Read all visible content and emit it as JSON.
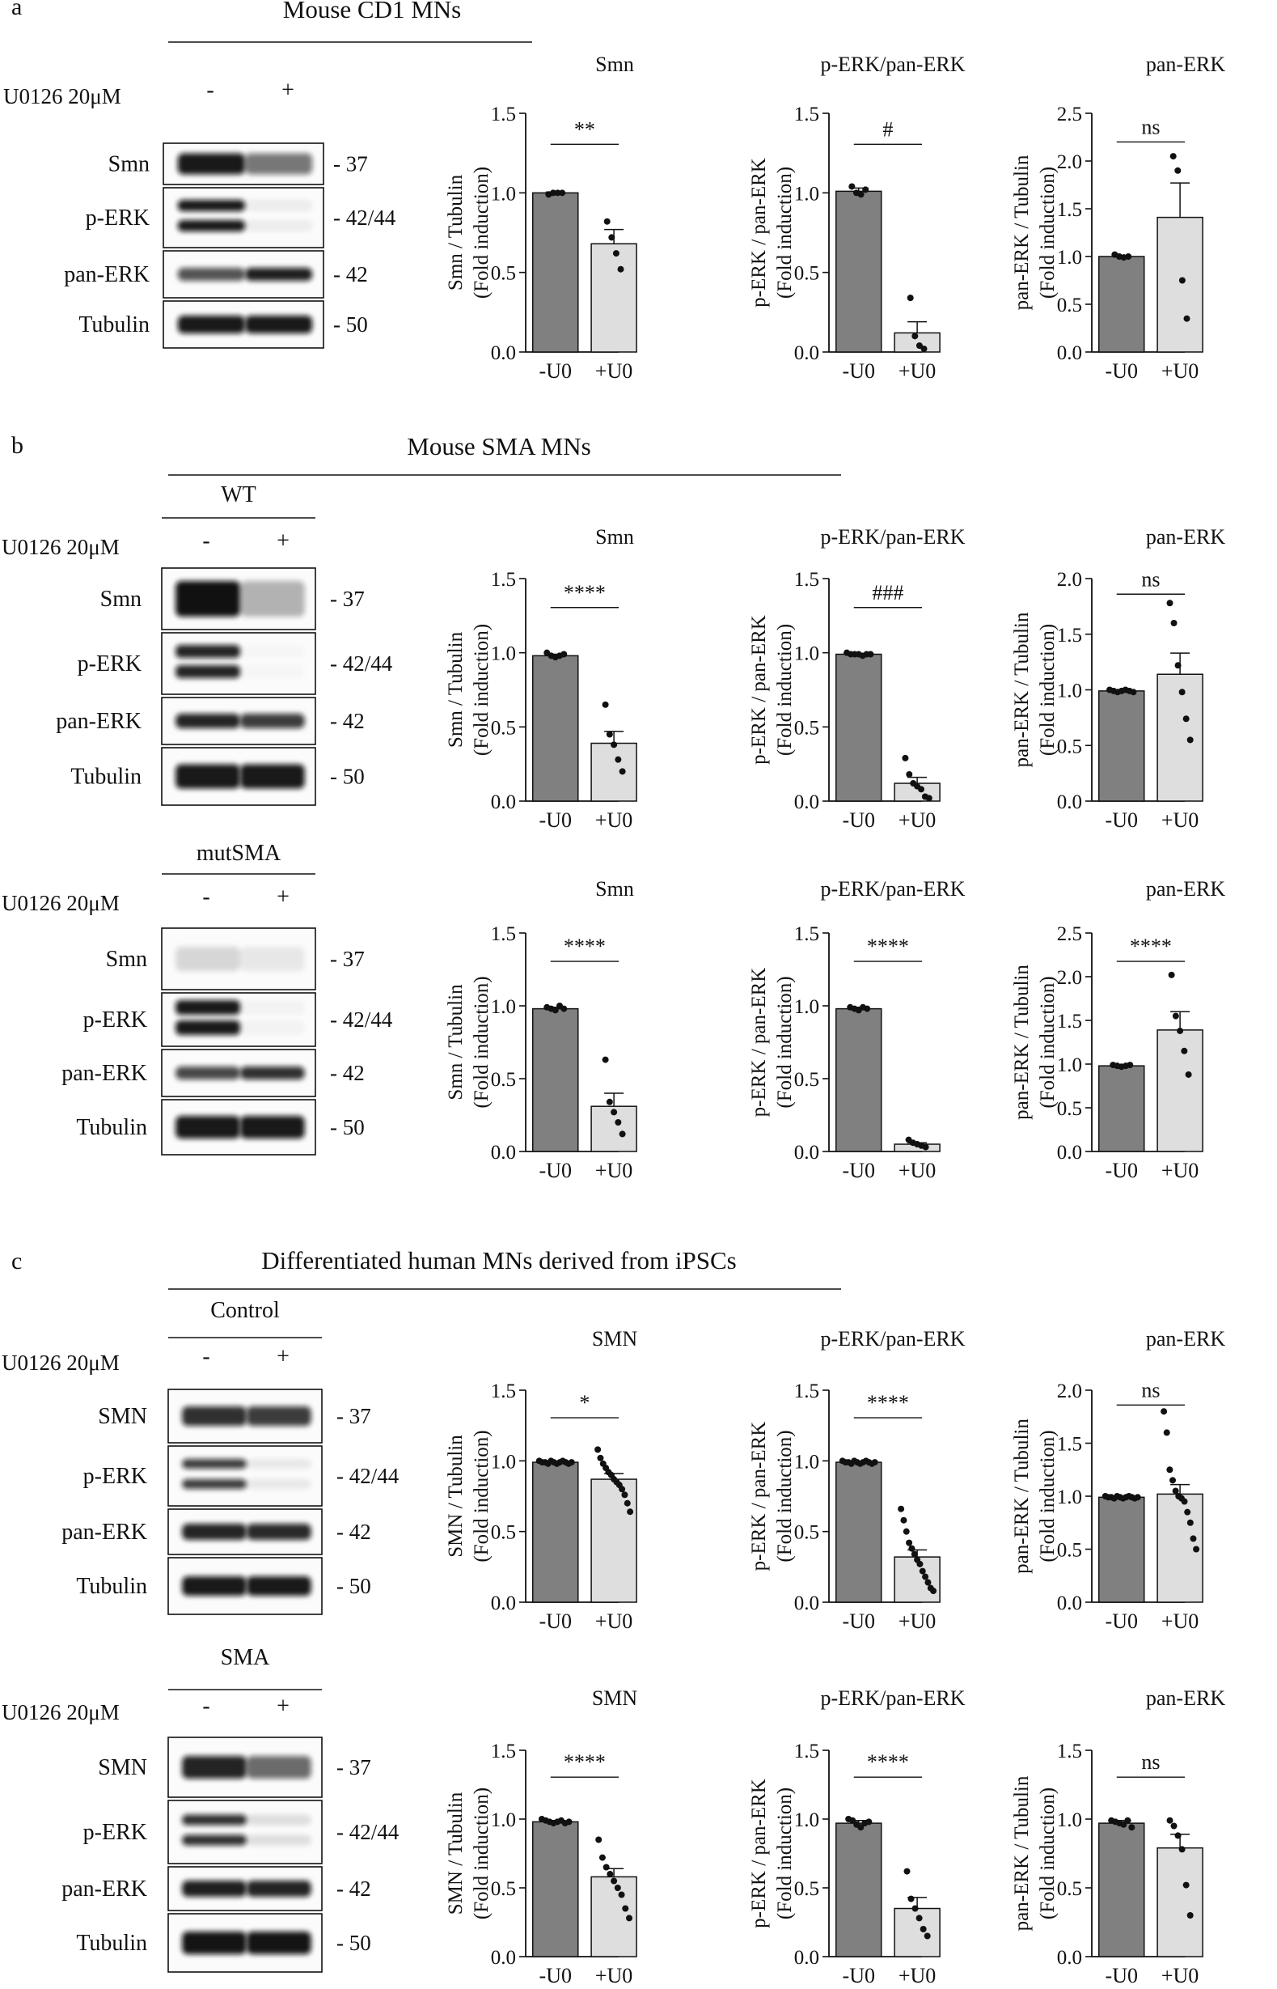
{
  "panels": [
    {
      "letter": "a",
      "header": "Mouse CD1 MNs",
      "blots": [
        {
          "group": "",
          "treatment": "U0126 20μM",
          "lanes": [
            "-",
            "+"
          ],
          "rows": [
            {
              "label": "Smn",
              "mw": "- 37"
            },
            {
              "label": "p-ERK",
              "mw": "- 42/44"
            },
            {
              "label": "pan-ERK",
              "mw": "- 42"
            },
            {
              "label": "Tubulin",
              "mw": "- 50"
            }
          ]
        }
      ]
    },
    {
      "letter": "b",
      "header": "Mouse SMA MNs",
      "blots": [
        {
          "group": "WT",
          "treatment": "U0126 20μM",
          "lanes": [
            "-",
            "+"
          ],
          "rows": [
            {
              "label": "Smn",
              "mw": "- 37"
            },
            {
              "label": "p-ERK",
              "mw": "- 42/44"
            },
            {
              "label": "pan-ERK",
              "mw": "- 42"
            },
            {
              "label": "Tubulin",
              "mw": "- 50"
            }
          ]
        },
        {
          "group": "mutSMA",
          "treatment": "U0126 20μM",
          "lanes": [
            "-",
            "+"
          ],
          "rows": [
            {
              "label": "Smn",
              "mw": "- 37"
            },
            {
              "label": "p-ERK",
              "mw": "- 42/44"
            },
            {
              "label": "pan-ERK",
              "mw": "- 42"
            },
            {
              "label": "Tubulin",
              "mw": "- 50"
            }
          ]
        }
      ]
    },
    {
      "letter": "c",
      "header": "Differentiated human MNs derived from iPSCs",
      "blots": [
        {
          "group": "Control",
          "treatment": "U0126 20μM",
          "lanes": [
            "-",
            "+"
          ],
          "rows": [
            {
              "label": "SMN",
              "mw": "- 37"
            },
            {
              "label": "p-ERK",
              "mw": "- 42/44"
            },
            {
              "label": "pan-ERK",
              "mw": "- 42"
            },
            {
              "label": "Tubulin",
              "mw": "- 50"
            }
          ]
        },
        {
          "group": "SMA",
          "treatment": "U0126 20μM",
          "lanes": [
            "-",
            "+"
          ],
          "rows": [
            {
              "label": "SMN",
              "mw": "- 37"
            },
            {
              "label": "p-ERK",
              "mw": "- 42/44"
            },
            {
              "label": "pan-ERK",
              "mw": "- 42"
            },
            {
              "label": "Tubulin",
              "mw": "- 50"
            }
          ]
        }
      ]
    }
  ],
  "colors": {
    "bar_control": "#808080",
    "bar_treated": "#dedede",
    "ink": "#111111"
  },
  "chart_data": [
    {
      "type": "bar",
      "title": "Smn",
      "ylabel": [
        "Smn / Tubulin",
        "(Fold induction)"
      ],
      "categories": [
        "-U0",
        "+U0"
      ],
      "values": [
        1.0,
        0.68
      ],
      "errors": [
        0.005,
        0.09
      ],
      "ylim": [
        0,
        1.5
      ],
      "yticks": [
        "0.0",
        "0.5",
        "1.0",
        "1.5"
      ],
      "significance": "**",
      "points": [
        [
          0.99,
          1.0,
          1.0,
          1.0
        ],
        [
          0.82,
          0.72,
          0.62,
          0.52
        ]
      ]
    },
    {
      "type": "bar",
      "title": "p-ERK/pan-ERK",
      "ylabel": [
        "p-ERK / pan-ERK",
        "(Fold induction)"
      ],
      "categories": [
        "-U0",
        "+U0"
      ],
      "values": [
        1.01,
        0.12
      ],
      "errors": [
        0.02,
        0.07
      ],
      "ylim": [
        0,
        1.5
      ],
      "yticks": [
        "0.0",
        "0.5",
        "1.0",
        "1.5"
      ],
      "significance": "#",
      "points": [
        [
          1.04,
          1.0,
          0.99,
          1.02
        ],
        [
          0.34,
          0.1,
          0.04,
          0.02
        ]
      ]
    },
    {
      "type": "bar",
      "title": "pan-ERK",
      "ylabel": [
        "pan-ERK / Tubulin",
        "(Fold induction)"
      ],
      "categories": [
        "-U0",
        "+U0"
      ],
      "values": [
        1.0,
        1.41
      ],
      "errors": [
        0.01,
        0.36
      ],
      "ylim": [
        0,
        2.5
      ],
      "yticks": [
        "0.0",
        "0.5",
        "1.0",
        "1.5",
        "2.0",
        "2.5"
      ],
      "significance": "ns",
      "points": [
        [
          1.02,
          1.0,
          0.99,
          1.0
        ],
        [
          2.05,
          1.9,
          0.75,
          0.35
        ]
      ]
    },
    {
      "type": "bar",
      "title": "Smn",
      "ylabel": [
        "Smn / Tubulin",
        "(Fold induction)"
      ],
      "categories": [
        "-U0",
        "+U0"
      ],
      "values": [
        0.98,
        0.39
      ],
      "errors": [
        0.01,
        0.08
      ],
      "ylim": [
        0,
        1.5
      ],
      "yticks": [
        "0.0",
        "0.5",
        "1.0",
        "1.5"
      ],
      "significance": "****",
      "points": [
        [
          1.0,
          0.98,
          0.97,
          0.98,
          0.99
        ],
        [
          0.65,
          0.45,
          0.38,
          0.28,
          0.2
        ]
      ]
    },
    {
      "type": "bar",
      "title": "p-ERK/pan-ERK",
      "ylabel": [
        "p-ERK / pan-ERK",
        "(Fold induction)"
      ],
      "categories": [
        "-U0",
        "+U0"
      ],
      "values": [
        0.99,
        0.12
      ],
      "errors": [
        0.005,
        0.04
      ],
      "ylim": [
        0,
        1.5
      ],
      "yticks": [
        "0.0",
        "0.5",
        "1.0",
        "1.5"
      ],
      "significance": "###",
      "points": [
        [
          1.0,
          0.99,
          0.99,
          0.99,
          0.98,
          0.99,
          0.99
        ],
        [
          0.29,
          0.18,
          0.12,
          0.1,
          0.08,
          0.03,
          0.02
        ]
      ]
    },
    {
      "type": "bar",
      "title": "pan-ERK",
      "ylabel": [
        "pan-ERK / Tubulin",
        "(Fold induction)"
      ],
      "categories": [
        "-U0",
        "+U0"
      ],
      "values": [
        0.99,
        1.14
      ],
      "errors": [
        0.01,
        0.19
      ],
      "ylim": [
        0,
        2.0
      ],
      "yticks": [
        "0.0",
        "0.5",
        "1.0",
        "1.5",
        "2.0"
      ],
      "significance": "ns",
      "points": [
        [
          1.0,
          0.99,
          0.98,
          0.99,
          1.0,
          0.99,
          0.98
        ],
        [
          1.78,
          1.6,
          1.22,
          0.98,
          0.74,
          0.55
        ]
      ]
    },
    {
      "type": "bar",
      "title": "Smn",
      "ylabel": [
        "Smn / Tubulin",
        "(Fold induction)"
      ],
      "categories": [
        "-U0",
        "+U0"
      ],
      "values": [
        0.98,
        0.31
      ],
      "errors": [
        0.01,
        0.09
      ],
      "ylim": [
        0,
        1.5
      ],
      "yticks": [
        "0.0",
        "0.5",
        "1.0",
        "1.5"
      ],
      "significance": "****",
      "points": [
        [
          0.99,
          0.98,
          0.97,
          1.0,
          0.98
        ],
        [
          0.63,
          0.34,
          0.27,
          0.2,
          0.12
        ]
      ]
    },
    {
      "type": "bar",
      "title": "p-ERK/pan-ERK",
      "ylabel": [
        "p-ERK / pan-ERK",
        "(Fold induction)"
      ],
      "categories": [
        "-U0",
        "+U0"
      ],
      "values": [
        0.98,
        0.05
      ],
      "errors": [
        0.01,
        0.01
      ],
      "ylim": [
        0,
        1.5
      ],
      "yticks": [
        "0.0",
        "0.5",
        "1.0",
        "1.5"
      ],
      "significance": "****",
      "points": [
        [
          0.99,
          0.98,
          0.97,
          0.99,
          0.98
        ],
        [
          0.08,
          0.06,
          0.05,
          0.04,
          0.03
        ]
      ]
    },
    {
      "type": "bar",
      "title": "pan-ERK",
      "ylabel": [
        "pan-ERK / Tubulin",
        "(Fold induction)"
      ],
      "categories": [
        "-U0",
        "+U0"
      ],
      "values": [
        0.98,
        1.39
      ],
      "errors": [
        0.01,
        0.21
      ],
      "ylim": [
        0,
        2.5
      ],
      "yticks": [
        "0.0",
        "0.5",
        "1.0",
        "1.5",
        "2.0",
        "2.5"
      ],
      "significance": "****",
      "points": [
        [
          0.99,
          0.98,
          0.97,
          0.98,
          0.99
        ],
        [
          2.02,
          1.55,
          1.38,
          1.15,
          0.88
        ]
      ]
    },
    {
      "type": "bar",
      "title": "SMN",
      "ylabel": [
        "SMN / Tubulin",
        "(Fold induction)"
      ],
      "categories": [
        "-U0",
        "+U0"
      ],
      "values": [
        0.99,
        0.87
      ],
      "errors": [
        0.005,
        0.04
      ],
      "ylim": [
        0,
        1.5
      ],
      "yticks": [
        "0.0",
        "0.5",
        "1.0",
        "1.5"
      ],
      "significance": "*",
      "points": [
        [
          1.0,
          0.99,
          0.99,
          0.98,
          1.0,
          0.99,
          0.98,
          0.99,
          1.0,
          0.99,
          0.98,
          0.99
        ],
        [
          1.08,
          1.02,
          0.98,
          0.95,
          0.92,
          0.9,
          0.87,
          0.85,
          0.83,
          0.8,
          0.76,
          0.7,
          0.64
        ]
      ]
    },
    {
      "type": "bar",
      "title": "p-ERK/pan-ERK",
      "ylabel": [
        "p-ERK / pan-ERK",
        "(Fold induction)"
      ],
      "categories": [
        "-U0",
        "+U0"
      ],
      "values": [
        0.99,
        0.32
      ],
      "errors": [
        0.005,
        0.05
      ],
      "ylim": [
        0,
        1.5
      ],
      "yticks": [
        "0.0",
        "0.5",
        "1.0",
        "1.5"
      ],
      "significance": "****",
      "points": [
        [
          1.0,
          0.99,
          0.99,
          0.98,
          1.0,
          0.99,
          0.98,
          0.99,
          1.0,
          0.99,
          0.98,
          0.99
        ],
        [
          0.66,
          0.58,
          0.5,
          0.42,
          0.38,
          0.34,
          0.3,
          0.27,
          0.22,
          0.18,
          0.14,
          0.1,
          0.08
        ]
      ]
    },
    {
      "type": "bar",
      "title": "pan-ERK",
      "ylabel": [
        "pan-ERK / Tubulin",
        "(Fold induction)"
      ],
      "categories": [
        "-U0",
        "+U0"
      ],
      "values": [
        0.99,
        1.02
      ],
      "errors": [
        0.005,
        0.09
      ],
      "ylim": [
        0,
        2.0
      ],
      "yticks": [
        "0.0",
        "0.5",
        "1.0",
        "1.5",
        "2.0"
      ],
      "significance": "ns",
      "points": [
        [
          1.0,
          0.99,
          0.99,
          0.98,
          1.0,
          0.99,
          0.98,
          0.99,
          1.0,
          0.99,
          0.98,
          0.99
        ],
        [
          1.8,
          1.6,
          1.25,
          1.15,
          1.05,
          1.0,
          0.98,
          0.95,
          0.85,
          0.75,
          0.6,
          0.5
        ]
      ]
    },
    {
      "type": "bar",
      "title": "SMN",
      "ylabel": [
        "SMN / Tubulin",
        "(Fold induction)"
      ],
      "categories": [
        "-U0",
        "+U0"
      ],
      "values": [
        0.98,
        0.58
      ],
      "errors": [
        0.01,
        0.06
      ],
      "ylim": [
        0,
        1.5
      ],
      "yticks": [
        "0.0",
        "0.5",
        "1.0",
        "1.5"
      ],
      "significance": "****",
      "points": [
        [
          1.0,
          0.99,
          0.98,
          0.97,
          0.98,
          0.99,
          0.97,
          0.98
        ],
        [
          0.85,
          0.72,
          0.65,
          0.6,
          0.55,
          0.5,
          0.45,
          0.35,
          0.28
        ]
      ]
    },
    {
      "type": "bar",
      "title": "p-ERK/pan-ERK",
      "ylabel": [
        "p-ERK / pan-ERK",
        "(Fold induction)"
      ],
      "categories": [
        "-U0",
        "+U0"
      ],
      "values": [
        0.97,
        0.35
      ],
      "errors": [
        0.02,
        0.08
      ],
      "ylim": [
        0,
        1.5
      ],
      "yticks": [
        "0.0",
        "0.5",
        "1.0",
        "1.5"
      ],
      "significance": "****",
      "points": [
        [
          1.0,
          0.99,
          0.96,
          0.94,
          0.97,
          0.98
        ],
        [
          0.62,
          0.42,
          0.35,
          0.28,
          0.2,
          0.15
        ]
      ]
    },
    {
      "type": "bar",
      "title": "pan-ERK",
      "ylabel": [
        "pan-ERK / Tubulin",
        "(Fold induction)"
      ],
      "categories": [
        "-U0",
        "+U0"
      ],
      "values": [
        0.97,
        0.79
      ],
      "errors": [
        0.02,
        0.1
      ],
      "ylim": [
        0,
        1.5
      ],
      "yticks": [
        "0.0",
        "0.5",
        "1.0",
        "1.5"
      ],
      "significance": "ns",
      "points": [
        [
          0.99,
          0.98,
          0.97,
          0.96,
          0.99,
          0.94
        ],
        [
          0.99,
          0.95,
          0.88,
          0.78,
          0.52,
          0.3
        ]
      ]
    }
  ]
}
